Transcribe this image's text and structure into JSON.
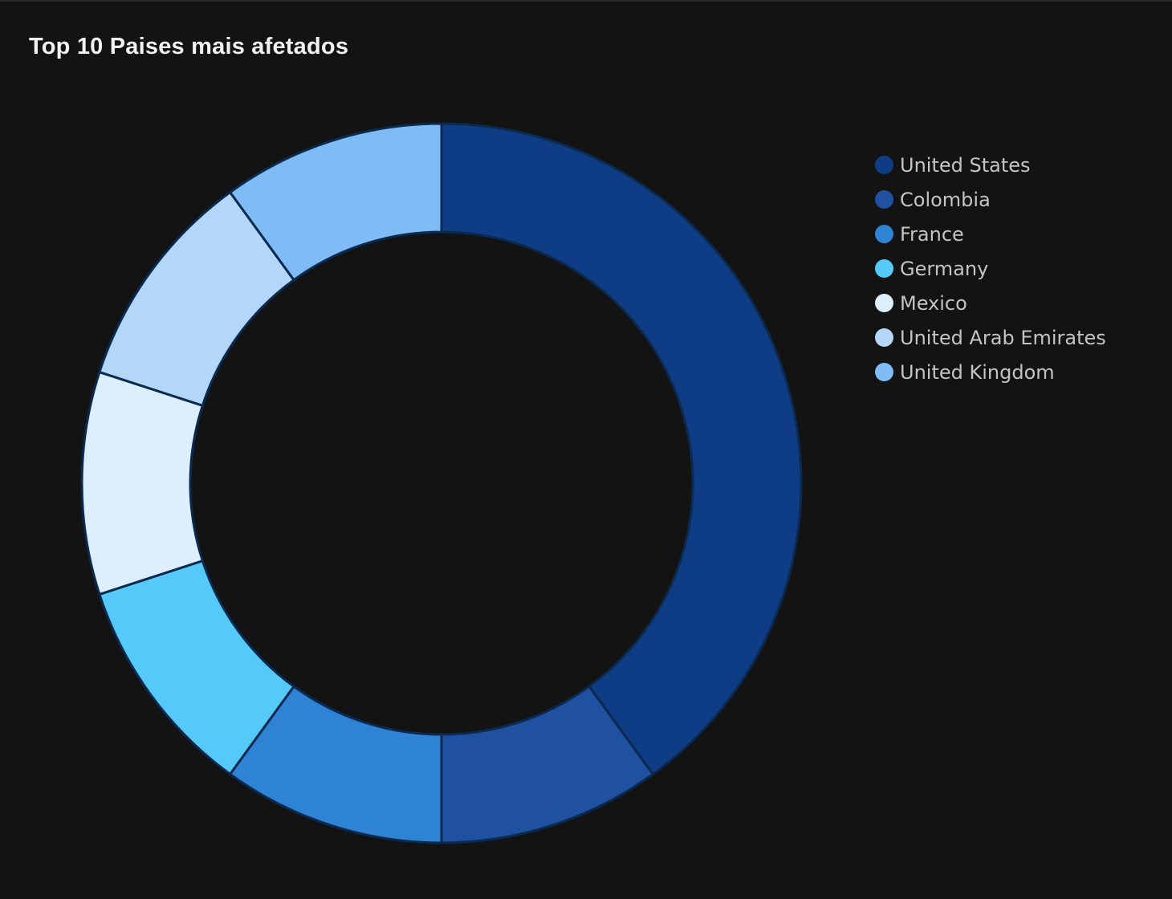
{
  "chart_data": {
    "type": "pie",
    "title": "Top 10 Paises mais afetados",
    "categories": [
      "United States",
      "Colombia",
      "France",
      "Germany",
      "Mexico",
      "United Arab Emirates",
      "United Kingdom"
    ],
    "values": [
      4,
      1,
      1,
      1,
      1,
      1,
      1
    ],
    "colors": [
      "#0f3d85",
      "#1f51a0",
      "#2f83d4",
      "#55c9f7",
      "#ddeefc",
      "#b4d6f8",
      "#7fbbf5"
    ],
    "donut": true,
    "legend_position": "right",
    "border_color": "#0b2a50"
  }
}
